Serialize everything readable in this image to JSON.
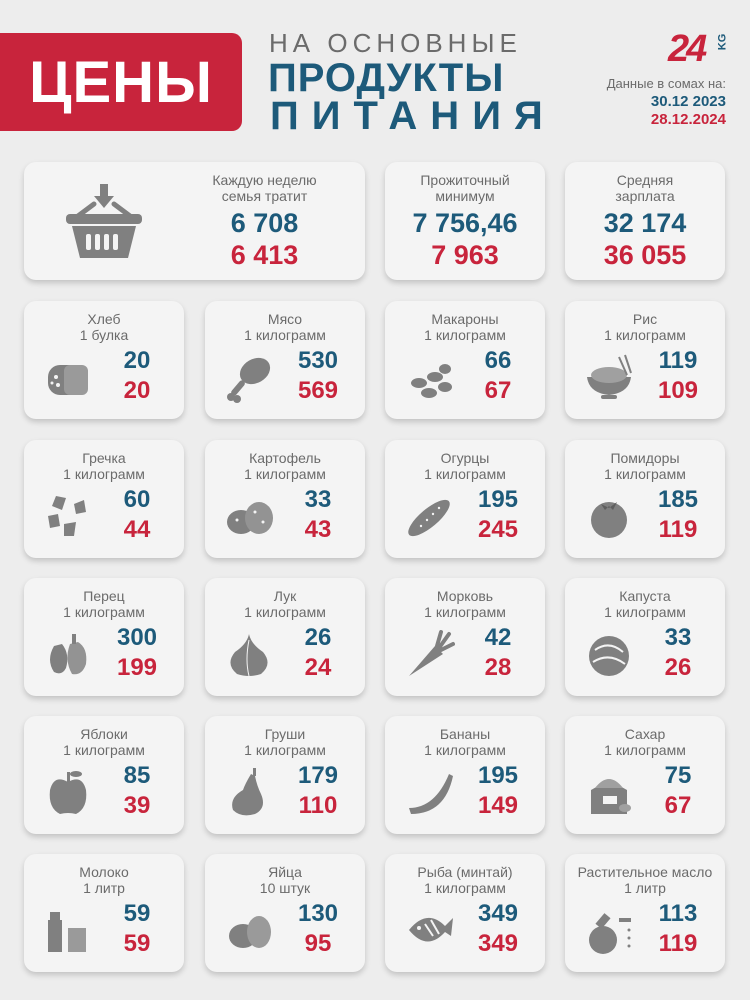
{
  "header": {
    "badge": "ЦЕНЫ",
    "line1": "НА ОСНОВНЫЕ",
    "line2": "ПРОДУКТЫ",
    "line3": "ПИТАНИЯ",
    "logo_num": "24",
    "logo_kg": "KG",
    "data_note": "Данные в сомах на:",
    "date1": "30.12 2023",
    "date2": "28.12.2024",
    "color_old": "#1d5a7a",
    "color_new": "#c8243c"
  },
  "summary": [
    {
      "label1": "Каждую неделю",
      "label2": "семья тратит",
      "v2023": "6 708",
      "v2024": "6 413",
      "icon": "basket-icon"
    },
    {
      "label1": "Прожиточный",
      "label2": "минимум",
      "v2023": "7 756,46",
      "v2024": "7 963"
    },
    {
      "label1": "Средняя",
      "label2": "зарплата",
      "v2023": "32 174",
      "v2024": "36 055"
    }
  ],
  "products": [
    {
      "name": "Хлеб",
      "unit": "1 булка",
      "v2023": "20",
      "v2024": "20",
      "icon": "bread-icon"
    },
    {
      "name": "Мясо",
      "unit": "1 килограмм",
      "v2023": "530",
      "v2024": "569",
      "icon": "meat-icon"
    },
    {
      "name": "Макароны",
      "unit": "1 килограмм",
      "v2023": "66",
      "v2024": "67",
      "icon": "pasta-icon"
    },
    {
      "name": "Рис",
      "unit": "1 килограмм",
      "v2023": "119",
      "v2024": "109",
      "icon": "rice-bowl-icon"
    },
    {
      "name": "Гречка",
      "unit": "1 килограмм",
      "v2023": "60",
      "v2024": "44",
      "icon": "buckwheat-icon"
    },
    {
      "name": "Картофель",
      "unit": "1 килограмм",
      "v2023": "33",
      "v2024": "43",
      "icon": "potato-icon"
    },
    {
      "name": "Огурцы",
      "unit": "1 килограмм",
      "v2023": "195",
      "v2024": "245",
      "icon": "cucumber-icon"
    },
    {
      "name": "Помидоры",
      "unit": "1 килограмм",
      "v2023": "185",
      "v2024": "119",
      "icon": "tomato-icon"
    },
    {
      "name": "Перец",
      "unit": "1 килограмм",
      "v2023": "300",
      "v2024": "199",
      "icon": "pepper-icon"
    },
    {
      "name": "Лук",
      "unit": "1 килограмм",
      "v2023": "26",
      "v2024": "24",
      "icon": "onion-icon"
    },
    {
      "name": "Морковь",
      "unit": "1 килограмм",
      "v2023": "42",
      "v2024": "28",
      "icon": "carrot-icon"
    },
    {
      "name": "Капуста",
      "unit": "1 килограмм",
      "v2023": "33",
      "v2024": "26",
      "icon": "cabbage-icon"
    },
    {
      "name": "Яблоки",
      "unit": "1 килограмм",
      "v2023": "85",
      "v2024": "39",
      "icon": "apple-icon"
    },
    {
      "name": "Груши",
      "unit": "1 килограмм",
      "v2023": "179",
      "v2024": "110",
      "icon": "pear-icon"
    },
    {
      "name": "Бананы",
      "unit": "1 килограмм",
      "v2023": "195",
      "v2024": "149",
      "icon": "banana-icon"
    },
    {
      "name": "Сахар",
      "unit": "1 килограмм",
      "v2023": "75",
      "v2024": "67",
      "icon": "sugar-icon"
    },
    {
      "name": "Молоко",
      "unit": "1 литр",
      "v2023": "59",
      "v2024": "59",
      "icon": "milk-icon"
    },
    {
      "name": "Яйца",
      "unit": "10 штук",
      "v2023": "130",
      "v2024": "95",
      "icon": "eggs-icon"
    },
    {
      "name": "Рыба (минтай)",
      "unit": "1 килограмм",
      "v2023": "349",
      "v2024": "349",
      "icon": "fish-icon"
    },
    {
      "name": "Растительное масло",
      "unit": "1 литр",
      "v2023": "113",
      "v2024": "119",
      "icon": "oil-bottle-icon"
    }
  ]
}
